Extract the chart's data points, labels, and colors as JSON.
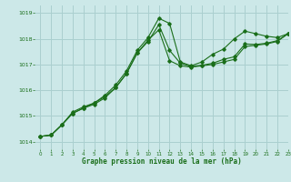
{
  "title": "Graphe pression niveau de la mer (hPa)",
  "background_color": "#cce8e8",
  "grid_color": "#aacfcf",
  "line_color": "#1a6e1a",
  "xlim": [
    -0.5,
    23
  ],
  "ylim": [
    1013.7,
    1019.3
  ],
  "yticks": [
    1014,
    1015,
    1016,
    1017,
    1018,
    1019
  ],
  "xticks": [
    0,
    1,
    2,
    3,
    4,
    5,
    6,
    7,
    8,
    9,
    10,
    11,
    12,
    13,
    14,
    15,
    16,
    17,
    18,
    19,
    20,
    21,
    22,
    23
  ],
  "series1": {
    "x": [
      0,
      1,
      2,
      3,
      4,
      5,
      6,
      7,
      8,
      9,
      10,
      11,
      12,
      13,
      14,
      15,
      16,
      17,
      18,
      19,
      20,
      21,
      22,
      23
    ],
    "y": [
      1014.2,
      1014.25,
      1014.65,
      1015.15,
      1015.35,
      1015.5,
      1015.8,
      1016.2,
      1016.75,
      1017.55,
      1018.05,
      1018.8,
      1018.6,
      1017.1,
      1016.95,
      1017.1,
      1017.4,
      1017.6,
      1018.0,
      1018.3,
      1018.2,
      1018.1,
      1018.05,
      1018.2
    ]
  },
  "series2": {
    "x": [
      0,
      1,
      2,
      3,
      4,
      5,
      6,
      7,
      8,
      9,
      10,
      11,
      12,
      13,
      14,
      15,
      16,
      17,
      18,
      19,
      20,
      21,
      22,
      23
    ],
    "y": [
      1014.2,
      1014.25,
      1014.65,
      1015.1,
      1015.3,
      1015.45,
      1015.7,
      1016.1,
      1016.65,
      1017.45,
      1017.95,
      1018.35,
      1017.15,
      1016.95,
      1016.9,
      1016.95,
      1017.0,
      1017.1,
      1017.2,
      1017.7,
      1017.75,
      1017.8,
      1017.9,
      1018.2
    ]
  },
  "series3": {
    "x": [
      0,
      1,
      2,
      3,
      4,
      5,
      6,
      7,
      8,
      9,
      10,
      11,
      12,
      13,
      14,
      15,
      16,
      17,
      18,
      19,
      20,
      21,
      22,
      23
    ],
    "y": [
      1014.2,
      1014.25,
      1014.65,
      1015.1,
      1015.3,
      1015.5,
      1015.75,
      1016.1,
      1016.65,
      1017.45,
      1017.9,
      1018.55,
      1017.55,
      1017.05,
      1016.92,
      1016.97,
      1017.05,
      1017.2,
      1017.3,
      1017.8,
      1017.78,
      1017.83,
      1017.93,
      1018.2
    ]
  }
}
